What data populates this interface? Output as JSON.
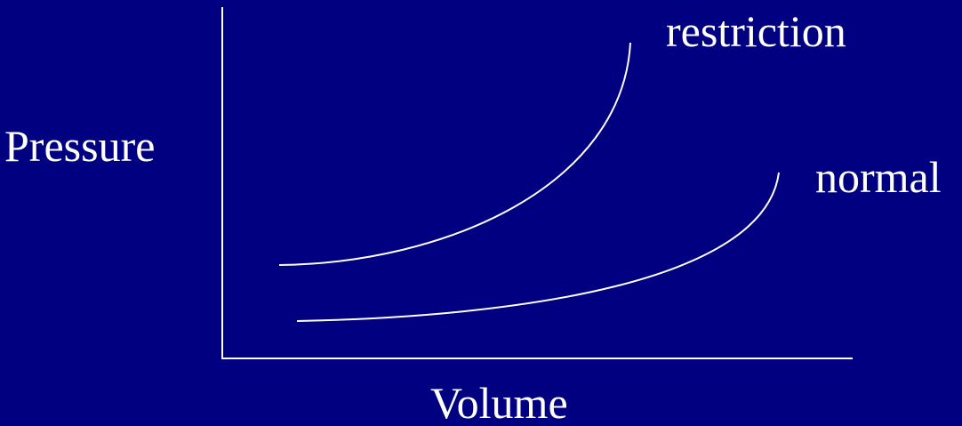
{
  "axes": {
    "y_label": "Pressure",
    "x_label": "Volume"
  },
  "curves": [
    {
      "id": "restriction",
      "label": "restriction",
      "color": "#ffffff"
    },
    {
      "id": "normal",
      "label": "normal",
      "color": "#ffffff"
    }
  ],
  "colors": {
    "background": "#000080",
    "foreground": "#ffffff"
  }
}
